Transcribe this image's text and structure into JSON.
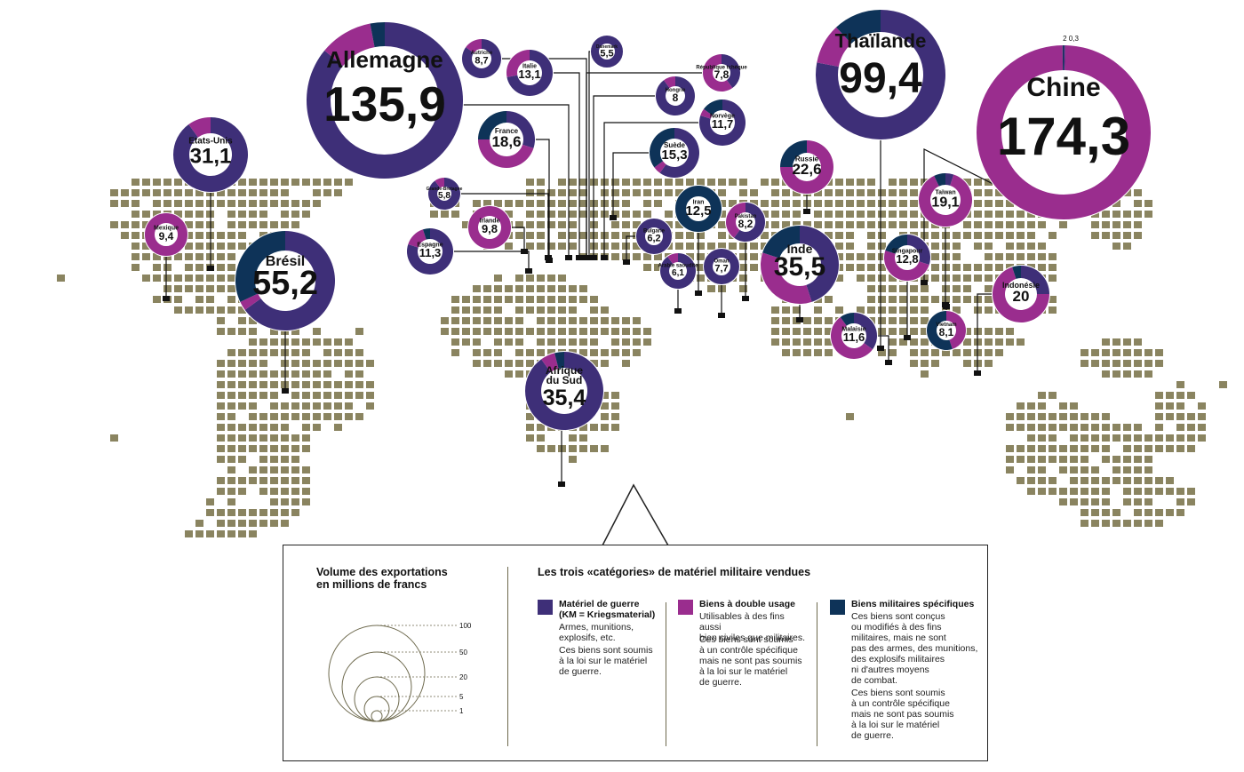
{
  "colors": {
    "war_material": "#3e2f78",
    "dual_use": "#9a2d8e",
    "specific": "#0e3358",
    "land": "#8a8460",
    "leader": "#111111"
  },
  "countries": [
    {
      "name": "Allemagne",
      "value": "135,9",
      "shares": [
        0.86,
        0.11,
        0.03
      ]
    },
    {
      "name": "Chine",
      "value": "174,3",
      "shares": [
        0.003,
        0.995,
        0.002
      ],
      "small_labels": "2  0,3"
    },
    {
      "name": "Thaïlande",
      "value": "99,4",
      "shares": [
        0.78,
        0.1,
        0.12
      ]
    },
    {
      "name": "Brésil",
      "value": "55,2",
      "shares": [
        0.65,
        0.03,
        0.32
      ]
    },
    {
      "name": "Inde",
      "value": "35,5",
      "shares": [
        0.45,
        0.35,
        0.2
      ]
    },
    {
      "name": "Afrique du Sud",
      "value": "35,4",
      "shares": [
        0.9,
        0.06,
        0.04
      ]
    },
    {
      "name": "Etats-Unis",
      "value": "31,1",
      "shares": [
        0.9,
        0.1,
        0.0
      ]
    },
    {
      "name": "Russie",
      "value": "22,6",
      "shares": [
        0.0,
        0.75,
        0.25
      ]
    },
    {
      "name": "Indonésie",
      "value": "20",
      "shares": [
        0.25,
        0.7,
        0.05
      ]
    },
    {
      "name": "Taïwan",
      "value": "19,1",
      "shares": [
        0.05,
        0.88,
        0.07
      ]
    },
    {
      "name": "France",
      "value": "18,6",
      "shares": [
        0.3,
        0.45,
        0.25
      ]
    },
    {
      "name": "Suède",
      "value": "15,3",
      "shares": [
        0.6,
        0.05,
        0.35
      ]
    },
    {
      "name": "Italie",
      "value": "13,1",
      "shares": [
        0.72,
        0.28,
        0.0
      ]
    },
    {
      "name": "Singapour",
      "value": "12,8",
      "shares": [
        0.3,
        0.5,
        0.2
      ]
    },
    {
      "name": "Iran",
      "value": "12,5",
      "shares": [
        0.0,
        0.0,
        1.0
      ]
    },
    {
      "name": "Norvège",
      "value": "11,7",
      "shares": [
        0.8,
        0.05,
        0.15
      ]
    },
    {
      "name": "Malaisie",
      "value": "11,6",
      "shares": [
        0.35,
        0.55,
        0.1
      ]
    },
    {
      "name": "Espagne",
      "value": "11,3",
      "shares": [
        0.8,
        0.15,
        0.05
      ]
    },
    {
      "name": "Irlande",
      "value": "9,8",
      "shares": [
        0.0,
        1.0,
        0.0
      ]
    },
    {
      "name": "Mexique",
      "value": "9,4",
      "shares": [
        0.0,
        1.0,
        0.0
      ]
    },
    {
      "name": "Autriche",
      "value": "8,7",
      "shares": [
        0.85,
        0.15,
        0.0
      ]
    },
    {
      "name": "Pakistan",
      "value": "8,2",
      "shares": [
        0.6,
        0.4,
        0.0
      ]
    },
    {
      "name": "Vietnam",
      "value": "8,1",
      "shares": [
        0.0,
        0.45,
        0.55
      ]
    },
    {
      "name": "Hongrie",
      "value": "8",
      "shares": [
        0.9,
        0.1,
        0.0
      ]
    },
    {
      "name": "République tchèque",
      "value": "7,8",
      "shares": [
        0.4,
        0.6,
        0.0
      ]
    },
    {
      "name": "Oman",
      "value": "7,7",
      "shares": [
        1.0,
        0.0,
        0.0
      ]
    },
    {
      "name": "Bulgarie",
      "value": "6,2",
      "shares": [
        1.0,
        0.0,
        0.0
      ]
    },
    {
      "name": "Arabie saoudite",
      "value": "6,1",
      "shares": [
        0.9,
        0.1,
        0.0
      ]
    },
    {
      "name": "Grande-Bretagne",
      "value": "5,8",
      "shares": [
        0.9,
        0.1,
        0.0
      ]
    },
    {
      "name": "Danemark",
      "value": "5,5",
      "shares": [
        1.0,
        0.0,
        0.0
      ]
    }
  ],
  "legend": {
    "volume_title": "Volume des exportations\nen millions de francs",
    "scale_values": [
      "100",
      "50",
      "20",
      "5",
      "1"
    ],
    "categories_title": "Les trois «catégories» de matériel militaire vendues",
    "categories": [
      {
        "title": "Matériel de guerre\n(KM = Kriegsmaterial)",
        "desc1": "Armes, munitions,\nexplosifs, etc.",
        "desc2": "Ces biens sont soumis\nà la loi sur le matériel\nde guerre."
      },
      {
        "title": "Biens à double usage",
        "desc1": "Utilisables à des fins aussi\nbien civiles que militaires.",
        "desc2": "Ces biens sont soumis\nà un contrôle spécifique\nmais ne sont pas soumis\nà la loi sur le matériel\nde guerre."
      },
      {
        "title": "Biens militaires spécifiques",
        "desc1": "Ces biens sont conçus\nou modifiés à des fins\nmilitaires, mais ne sont\npas des armes, des munitions,\ndes explosifs militaires\nni d'autres moyens\nde combat.",
        "desc2": "Ces biens sont soumis\nà un contrôle spécifique\nmais ne sont pas soumis\nà la loi sur le matériel\nde guerre."
      }
    ]
  }
}
